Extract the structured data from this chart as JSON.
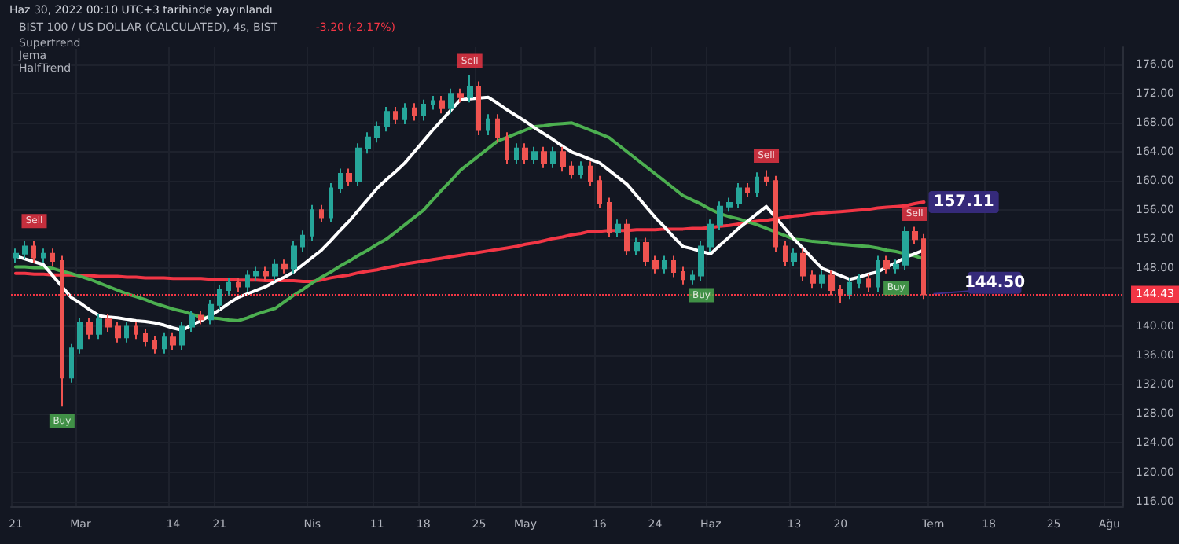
{
  "chart_data": {
    "type": "candlestick",
    "title": "BIST 100 / US DOLLAR (CALCULATED), 4s, BIST",
    "subtitle": "-3.20 (-2.17%)",
    "annotations": [
      "Haz 30, 2022 00:10 UTC+3 tarihinde yayınlandı",
      "Supertrend",
      "Jema",
      "HalfTrend",
      {
        "text": "144.50",
        "y": 144.5
      }
    ],
    "categories": [
      "21",
      null,
      null,
      null,
      null,
      null,
      null,
      "Mar",
      null,
      null,
      null,
      null,
      null,
      null,
      null,
      null,
      null,
      "14",
      null,
      null,
      null,
      null,
      "21",
      null,
      null,
      null,
      null,
      null,
      null,
      null,
      null,
      null,
      "Nis",
      null,
      null,
      null,
      null,
      null,
      null,
      "11",
      null,
      null,
      null,
      null,
      "18",
      null,
      null,
      null,
      null,
      null,
      "25",
      null,
      null,
      null,
      null,
      "May",
      null,
      null,
      null,
      null,
      null,
      null,
      null,
      "16",
      null,
      null,
      null,
      null,
      null,
      "24",
      null,
      null,
      null,
      null,
      null,
      "Haz",
      null,
      null,
      null,
      null,
      null,
      null,
      null,
      null,
      "13",
      null,
      null,
      null,
      null,
      "20",
      null,
      null,
      null,
      null,
      null,
      null,
      null,
      null,
      null,
      "Tem",
      null,
      null,
      null,
      null,
      null,
      "18",
      null,
      null,
      null,
      null,
      null,
      null,
      "25",
      null,
      null,
      null,
      null,
      null,
      "Ağu",
      null
    ],
    "ohlc": [
      [
        149.5,
        150.7,
        148.8,
        150
      ],
      [
        150,
        151.7,
        149.3,
        151
      ],
      [
        151,
        151.7,
        148.8,
        149.5
      ],
      [
        149.5,
        150.7,
        148.8,
        150
      ],
      [
        150,
        150.7,
        148.3,
        149
      ],
      [
        149,
        149.7,
        129,
        133
      ],
      [
        133,
        137.7,
        132.3,
        137
      ],
      [
        137,
        141.2,
        136.3,
        140.5
      ],
      [
        140.5,
        141.2,
        138.3,
        139
      ],
      [
        139,
        141.7,
        138.3,
        141
      ],
      [
        141,
        141.7,
        139.3,
        140
      ],
      [
        140,
        140.7,
        137.8,
        138.5
      ],
      [
        138.5,
        140.7,
        137.8,
        140
      ],
      [
        140,
        140.7,
        138.3,
        139
      ],
      [
        139,
        139.7,
        137.3,
        138
      ],
      [
        138,
        138.7,
        136.3,
        137
      ],
      [
        137,
        139.2,
        136.3,
        138.5
      ],
      [
        138.5,
        139.2,
        136.8,
        137.5
      ],
      [
        137.5,
        140.7,
        136.8,
        140
      ],
      [
        140,
        142.2,
        139.3,
        141.5
      ],
      [
        141.5,
        142.2,
        140.3,
        141
      ],
      [
        141,
        143.7,
        140.3,
        143
      ],
      [
        143,
        145.7,
        142.3,
        145
      ],
      [
        145,
        146.7,
        144.3,
        146
      ],
      [
        146,
        146.7,
        144.8,
        145.5
      ],
      [
        145.5,
        147.7,
        144.8,
        147
      ],
      [
        147,
        148.2,
        146.3,
        147.5
      ],
      [
        147.5,
        148.2,
        146.3,
        147
      ],
      [
        147,
        149.2,
        146.3,
        148.5
      ],
      [
        148.5,
        149.2,
        147.3,
        148
      ],
      [
        148,
        151.7,
        147.3,
        151
      ],
      [
        151,
        153.2,
        150.3,
        152.5
      ],
      [
        152.5,
        156.7,
        151.8,
        156
      ],
      [
        156,
        156.7,
        154.3,
        155
      ],
      [
        155,
        159.7,
        154.3,
        159
      ],
      [
        159,
        161.7,
        158.3,
        161
      ],
      [
        161,
        161.7,
        159.3,
        160
      ],
      [
        160,
        165.2,
        159.3,
        164.5
      ],
      [
        164.5,
        166.7,
        163.8,
        166
      ],
      [
        166,
        168.2,
        165.3,
        167.5
      ],
      [
        167.5,
        170.2,
        166.8,
        169.5
      ],
      [
        169.5,
        170.2,
        167.8,
        168.5
      ],
      [
        168.5,
        170.7,
        167.8,
        170
      ],
      [
        170,
        170.7,
        168.3,
        169
      ],
      [
        169,
        171.2,
        168.3,
        170.5
      ],
      [
        170.5,
        171.7,
        169.8,
        171
      ],
      [
        171,
        171.7,
        169.3,
        170
      ],
      [
        170,
        172.7,
        169.3,
        172
      ],
      [
        172,
        172.7,
        170.8,
        171.5
      ],
      [
        171.5,
        174.5,
        170.8,
        173
      ],
      [
        173,
        173.7,
        166.3,
        167
      ],
      [
        167,
        169.2,
        166.3,
        168.5
      ],
      [
        168.5,
        169.2,
        165.3,
        166
      ],
      [
        166,
        166.7,
        162.3,
        163
      ],
      [
        163,
        165.2,
        162.3,
        164.5
      ],
      [
        164.5,
        165.2,
        162.3,
        163
      ],
      [
        163,
        164.7,
        162.3,
        164
      ],
      [
        164,
        164.7,
        161.8,
        162.5
      ],
      [
        162.5,
        164.7,
        161.8,
        164
      ],
      [
        164,
        164.7,
        161.3,
        162
      ],
      [
        162,
        162.7,
        160.3,
        161
      ],
      [
        161,
        162.7,
        160.3,
        162
      ],
      [
        162,
        162.7,
        159.3,
        160
      ],
      [
        160,
        160.7,
        156.3,
        157
      ],
      [
        157,
        157.7,
        152.3,
        153
      ],
      [
        153,
        154.7,
        152.3,
        154
      ],
      [
        154,
        154.7,
        149.8,
        150.5
      ],
      [
        150.5,
        152.2,
        149.8,
        151.5
      ],
      [
        151.5,
        152.2,
        148.3,
        149
      ],
      [
        149,
        149.7,
        147.3,
        148
      ],
      [
        148,
        149.7,
        147.3,
        149
      ],
      [
        149,
        149.7,
        146.8,
        147.5
      ],
      [
        147.5,
        148.2,
        145.8,
        146.5
      ],
      [
        146.5,
        147.7,
        145.8,
        147
      ],
      [
        147,
        151.7,
        146.3,
        151
      ],
      [
        151,
        154.7,
        150.3,
        154
      ],
      [
        154,
        157.2,
        153.3,
        156.5
      ],
      [
        156.5,
        157.7,
        155.8,
        157
      ],
      [
        157,
        159.7,
        156.3,
        159
      ],
      [
        159,
        159.7,
        157.8,
        158.5
      ],
      [
        158.5,
        161.2,
        157.8,
        160.5
      ],
      [
        160.5,
        161.5,
        159.3,
        160
      ],
      [
        160,
        160.7,
        150.3,
        151
      ],
      [
        151,
        151.7,
        148.3,
        149
      ],
      [
        149,
        150.7,
        148.3,
        150
      ],
      [
        150,
        150.7,
        146.3,
        147
      ],
      [
        147,
        147.7,
        145.3,
        146
      ],
      [
        146,
        147.7,
        145.3,
        147
      ],
      [
        147,
        147.7,
        144.3,
        145
      ],
      [
        145,
        145.7,
        143.2,
        144.5
      ],
      [
        144.5,
        146.7,
        143.8,
        146
      ],
      [
        146,
        147.2,
        145.3,
        146.5
      ],
      [
        146.5,
        147.2,
        144.8,
        145.5
      ],
      [
        145.5,
        149.7,
        144.8,
        149
      ],
      [
        149,
        149.7,
        147.3,
        148
      ],
      [
        148,
        149.2,
        147.3,
        148.5
      ],
      [
        148.5,
        153.7,
        147.8,
        153
      ],
      [
        153,
        153.7,
        151.3,
        152
      ],
      [
        152,
        152.7,
        143.8,
        144.43
      ],
      null,
      null,
      null,
      null,
      null,
      null,
      null,
      null,
      null,
      null,
      null,
      null,
      null,
      null,
      null,
      null,
      null,
      null,
      null,
      null,
      null
    ],
    "series": [
      {
        "type": "line",
        "color": "#f23645",
        "values": [
          147.3,
          147.3,
          147.2,
          147.2,
          147.1,
          147.1,
          147.1,
          147.0,
          147.0,
          146.9,
          146.9,
          146.9,
          146.8,
          146.8,
          146.7,
          146.7,
          146.7,
          146.6,
          146.6,
          146.6,
          146.6,
          146.5,
          146.5,
          146.5,
          146.4,
          146.4,
          146.4,
          146.3,
          146.3,
          146.3,
          146.3,
          146.2,
          146.2,
          146.4,
          146.7,
          146.9,
          147.1,
          147.4,
          147.6,
          147.8,
          148.1,
          148.3,
          148.6,
          148.8,
          149.0,
          149.2,
          149.4,
          149.6,
          149.8,
          150.0,
          150.2,
          150.4,
          150.6,
          150.8,
          151.0,
          151.3,
          151.5,
          151.8,
          152.1,
          152.3,
          152.6,
          152.8,
          153.1,
          153.1,
          153.2,
          153.2,
          153.2,
          153.3,
          153.3,
          153.3,
          153.4,
          153.4,
          153.4,
          153.5,
          153.5,
          153.6,
          153.8,
          153.9,
          154.1,
          154.3,
          154.5,
          154.6,
          154.8,
          155.0,
          155.2,
          155.3,
          155.5,
          155.6,
          155.7,
          155.8,
          155.9,
          156.0,
          156.1,
          156.3,
          156.4,
          156.5,
          156.6,
          156.9,
          157.11,
          null,
          null,
          null,
          null,
          null,
          null,
          null,
          null,
          null,
          null,
          null,
          null,
          null,
          null,
          null,
          null,
          null,
          null,
          null,
          null,
          null
        ],
        "value_labels": [
          null,
          null,
          null,
          null,
          null,
          null,
          null,
          null,
          null,
          null,
          null,
          null,
          null,
          null,
          null,
          null,
          null,
          null,
          null,
          null,
          null,
          null,
          null,
          null,
          null,
          null,
          null,
          null,
          null,
          null,
          null,
          null,
          null,
          null,
          null,
          null,
          null,
          null,
          null,
          null,
          null,
          null,
          null,
          null,
          null,
          null,
          null,
          null,
          null,
          null,
          null,
          null,
          null,
          null,
          null,
          null,
          null,
          null,
          null,
          null,
          null,
          null,
          null,
          null,
          null,
          null,
          null,
          null,
          null,
          null,
          null,
          null,
          null,
          null,
          null,
          null,
          null,
          null,
          null,
          null,
          null,
          null,
          null,
          null,
          null,
          null,
          null,
          null,
          null,
          null,
          null,
          null,
          null,
          null,
          null,
          null,
          null,
          null,
          "157.11",
          null,
          null,
          null,
          null,
          null,
          null,
          null,
          null,
          null,
          null,
          null,
          null,
          null,
          null,
          null,
          null,
          null,
          null,
          null,
          null,
          null
        ]
      },
      {
        "type": "line",
        "color": "#4caf50",
        "values": [
          148.2,
          148.2,
          148.1,
          148.1,
          148,
          147.6,
          147.3,
          146.9,
          146.5,
          146,
          145.5,
          145,
          144.5,
          144.1,
          143.7,
          143.2,
          142.8,
          142.4,
          142.1,
          141.7,
          141.3,
          141.2,
          141.1,
          140.9,
          140.8,
          141.2,
          141.7,
          142.1,
          142.5,
          143.4,
          144.3,
          145.1,
          146,
          146.8,
          147.5,
          148.3,
          149,
          149.8,
          150.5,
          151.3,
          152,
          153,
          154,
          155,
          156,
          157.4,
          158.8,
          160.1,
          161.5,
          162.5,
          163.5,
          164.5,
          165.5,
          166,
          166.5,
          167,
          167.5,
          167.6,
          167.8,
          167.9,
          168,
          167.5,
          167,
          166.5,
          166,
          165,
          164,
          163,
          162,
          161,
          160,
          159,
          158,
          157.4,
          156.8,
          156.1,
          155.5,
          155.1,
          154.8,
          154.4,
          154,
          153.5,
          153,
          152.5,
          152,
          151.9,
          151.7,
          151.6,
          151.4,
          151.3,
          151.2,
          151.1,
          151,
          150.8,
          150.5,
          150.3,
          150,
          149.7,
          149.3,
          null,
          null,
          null,
          null,
          null,
          null,
          null,
          null,
          null,
          null,
          null,
          null,
          null,
          null,
          null,
          null,
          null,
          null,
          null,
          null,
          null
        ]
      },
      {
        "type": "line",
        "color": "#ffffff",
        "values": [
          149.7,
          149.3,
          148.9,
          148.5,
          147,
          145.5,
          144,
          143.2,
          142.3,
          141.5,
          141.3,
          141.2,
          141,
          140.8,
          140.7,
          140.5,
          140.2,
          139.8,
          139.5,
          140.2,
          140.8,
          141.5,
          142.3,
          143.2,
          144,
          144.5,
          145,
          145.5,
          146.2,
          146.8,
          147.5,
          148.5,
          149.5,
          150.5,
          151.8,
          153.2,
          154.5,
          156,
          157.5,
          159,
          160.2,
          161.3,
          162.5,
          164,
          165.5,
          167,
          168.4,
          169.8,
          171.2,
          171.3,
          171.4,
          171.5,
          170.7,
          169.8,
          169,
          168.2,
          167.3,
          166.5,
          165.7,
          164.8,
          164,
          163.5,
          163,
          162.5,
          161.5,
          160.5,
          159.5,
          158,
          156.5,
          155,
          153.7,
          152.3,
          151,
          150.7,
          150.3,
          150,
          151.2,
          152.3,
          153.5,
          154.5,
          155.5,
          156.5,
          155,
          153.5,
          152,
          150.7,
          149.3,
          148,
          147.5,
          147,
          146.5,
          146.8,
          147.2,
          147.5,
          148.2,
          148.8,
          149.5,
          150,
          150.5,
          null,
          null,
          null,
          null,
          null,
          null,
          null,
          null,
          null,
          null,
          null,
          null,
          null,
          null,
          null,
          null,
          null,
          null,
          null,
          null,
          null
        ]
      },
      {
        "type": "scatter",
        "name": "Sell",
        "color": "#f23645",
        "marker": "square",
        "values": [
          null,
          null,
          154.5,
          null,
          null,
          null,
          null,
          null,
          null,
          null,
          null,
          null,
          null,
          null,
          null,
          null,
          null,
          null,
          null,
          null,
          null,
          null,
          null,
          null,
          null,
          null,
          null,
          null,
          null,
          null,
          null,
          null,
          null,
          null,
          null,
          null,
          null,
          null,
          null,
          null,
          null,
          null,
          null,
          null,
          null,
          null,
          null,
          null,
          null,
          176.5,
          null,
          null,
          null,
          null,
          null,
          null,
          null,
          null,
          null,
          null,
          null,
          null,
          null,
          null,
          null,
          null,
          null,
          null,
          null,
          null,
          null,
          null,
          null,
          null,
          null,
          null,
          null,
          null,
          null,
          null,
          null,
          163.5,
          null,
          null,
          null,
          null,
          null,
          null,
          null,
          null,
          null,
          null,
          null,
          null,
          null,
          null,
          null,
          155.5,
          null,
          null,
          null,
          null,
          null,
          null,
          null,
          null,
          null,
          null,
          null,
          null,
          null,
          null,
          null,
          null,
          null,
          null,
          null,
          null,
          null,
          null
        ]
      },
      {
        "type": "scatter",
        "name": "Buy",
        "color": "#4caf50",
        "marker": "square",
        "values": [
          null,
          null,
          null,
          null,
          null,
          127,
          null,
          null,
          null,
          null,
          null,
          null,
          null,
          null,
          null,
          null,
          null,
          null,
          null,
          null,
          null,
          null,
          null,
          null,
          null,
          null,
          null,
          null,
          null,
          null,
          null,
          null,
          null,
          null,
          null,
          null,
          null,
          null,
          null,
          null,
          null,
          null,
          null,
          null,
          null,
          null,
          null,
          null,
          null,
          null,
          null,
          null,
          null,
          null,
          null,
          null,
          null,
          null,
          null,
          null,
          null,
          null,
          null,
          null,
          null,
          null,
          null,
          null,
          null,
          null,
          null,
          null,
          null,
          null,
          144.3,
          null,
          null,
          null,
          null,
          null,
          null,
          null,
          null,
          null,
          null,
          null,
          null,
          null,
          null,
          null,
          null,
          null,
          null,
          null,
          null,
          145.3,
          null,
          null,
          null,
          null,
          null,
          null,
          null,
          null,
          null,
          null,
          null,
          null,
          null,
          null,
          null,
          null,
          null,
          null,
          null,
          null,
          null,
          null,
          null,
          null
        ]
      }
    ],
    "ylim": [
      115.3,
      178.4
    ],
    "yticks": [
      {
        "value": 116,
        "label": "116.00"
      },
      {
        "value": 120,
        "label": "120.00"
      },
      {
        "value": 124,
        "label": "124.00"
      },
      {
        "value": 128,
        "label": "128.00"
      },
      {
        "value": 132,
        "label": "132.00"
      },
      {
        "value": 136,
        "label": "136.00"
      },
      {
        "value": 140,
        "label": "140.00"
      },
      {
        "value": 148,
        "label": "148.00"
      },
      {
        "value": 152,
        "label": "152.00"
      },
      {
        "value": 156,
        "label": "156.00"
      },
      {
        "value": 160,
        "label": "160.00"
      },
      {
        "value": 164,
        "label": "164.00"
      },
      {
        "value": 168,
        "label": "168.00"
      },
      {
        "value": 172,
        "label": "172.00"
      },
      {
        "value": 176,
        "label": "176.00"
      }
    ],
    "ref_lines": [
      {
        "axis": "y",
        "value": 144.43,
        "label": "144.43",
        "color": "#f23645",
        "line_style": "dotted"
      }
    ],
    "grid": true,
    "legend": false,
    "marker": "none",
    "line_style": "solid"
  }
}
